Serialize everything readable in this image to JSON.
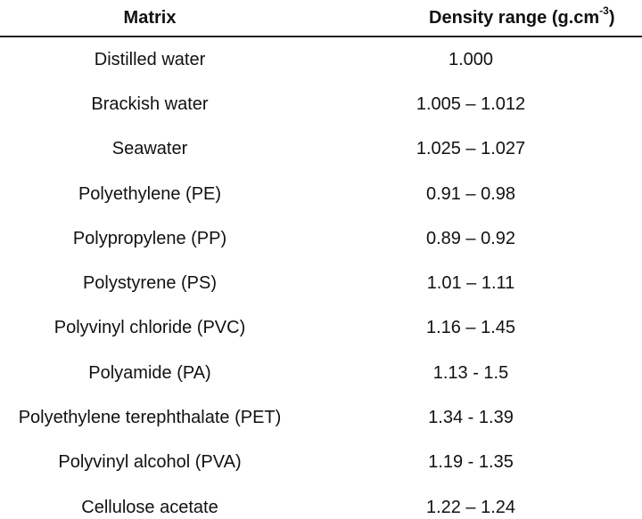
{
  "table": {
    "headers": {
      "matrix": "Matrix",
      "density_prefix": "Density range (g.cm",
      "density_exp": "-3",
      "density_suffix": ")"
    },
    "rows": [
      {
        "matrix": "Distilled water",
        "density": "1.000"
      },
      {
        "matrix": "Brackish water",
        "density": "1.005 – 1.012"
      },
      {
        "matrix": "Seawater",
        "density": "1.025 – 1.027"
      },
      {
        "matrix": "Polyethylene (PE)",
        "density": "0.91 – 0.98"
      },
      {
        "matrix": "Polypropylene (PP)",
        "density": "0.89 – 0.92"
      },
      {
        "matrix": "Polystyrene (PS)",
        "density": "1.01 – 1.11"
      },
      {
        "matrix": "Polyvinyl chloride (PVC)",
        "density": "1.16 – 1.45"
      },
      {
        "matrix": "Polyamide (PA)",
        "density": "1.13 - 1.5"
      },
      {
        "matrix": "Polyethylene terephthalate (PET)",
        "density": "1.34 - 1.39"
      },
      {
        "matrix": "Polyvinyl alcohol (PVA)",
        "density": "1.19 - 1.35"
      },
      {
        "matrix": "Cellulose acetate",
        "density": "1.22 – 1.24"
      }
    ]
  }
}
